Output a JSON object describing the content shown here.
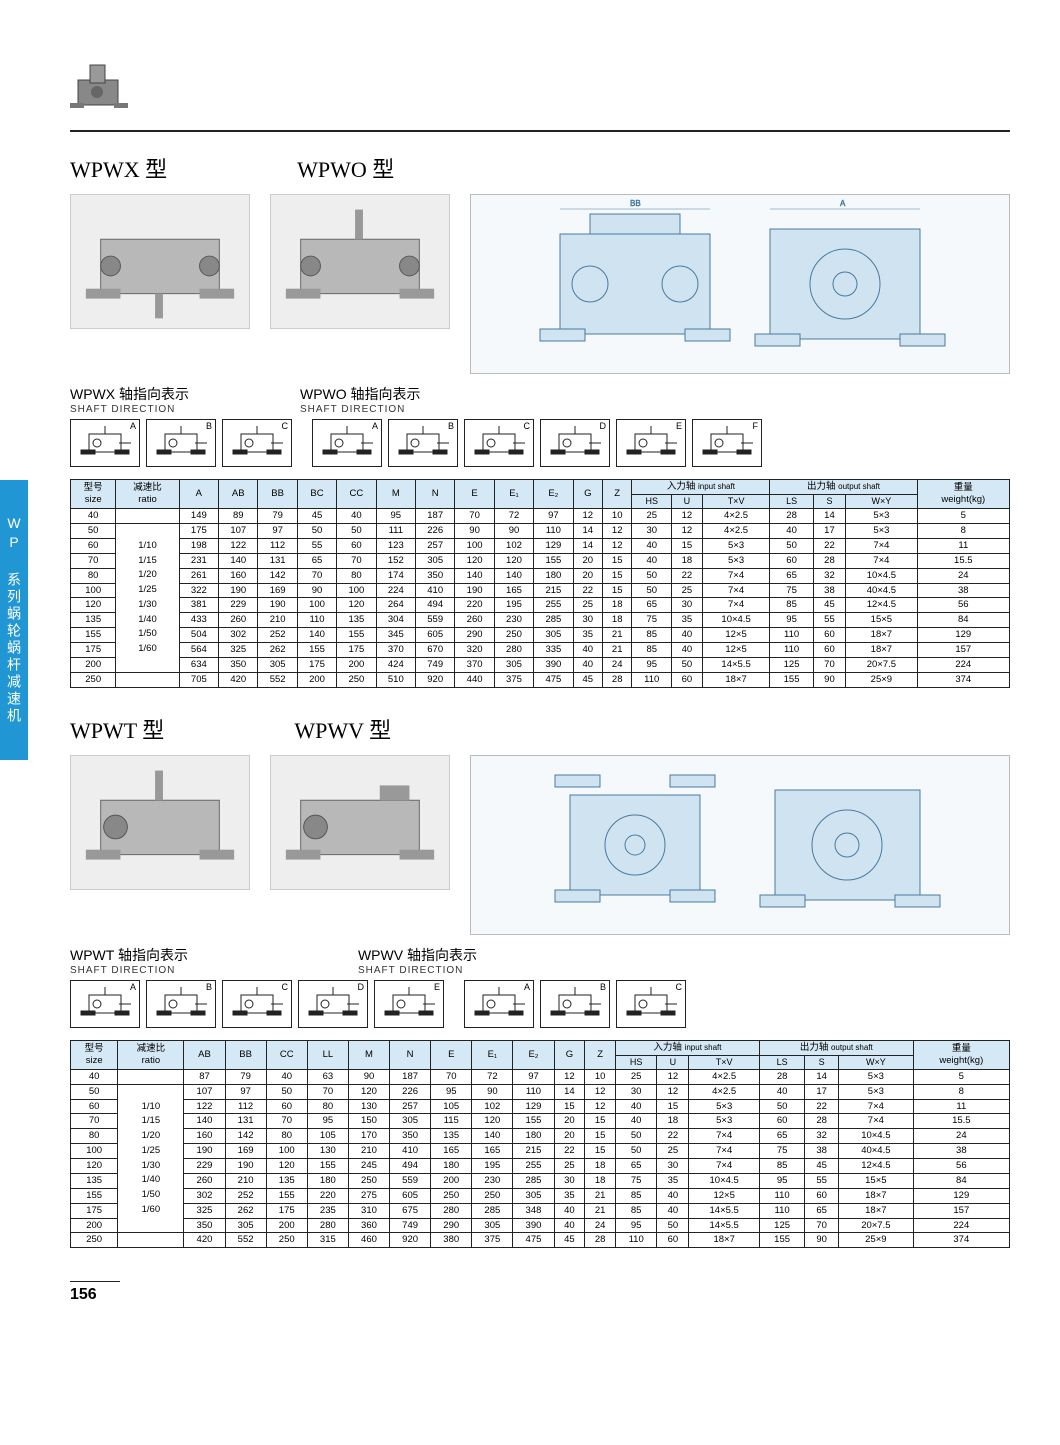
{
  "page_number": "156",
  "side_tab_text": "WP 系列蜗轮蜗杆减速机",
  "section1": {
    "title_left": "WPWX 型",
    "title_right": "WPWO 型",
    "sub_left_cn": "WPWX 轴指向表示",
    "sub_right_cn": "WPWO 轴指向表示",
    "sub_en": "SHAFT DIRECTION",
    "shaft_letters_left": [
      "A",
      "B",
      "C"
    ],
    "shaft_letters_right": [
      "A",
      "B",
      "C",
      "D",
      "E",
      "F"
    ]
  },
  "section2": {
    "title_left": "WPWT 型",
    "title_right": "WPWV 型",
    "sub_left_cn": "WPWT 轴指向表示",
    "sub_right_cn": "WPWV 轴指向表示",
    "sub_en": "SHAFT DIRECTION",
    "shaft_letters_left": [
      "A",
      "B",
      "C",
      "D",
      "E"
    ],
    "shaft_letters_right": [
      "A",
      "B",
      "C"
    ]
  },
  "table1": {
    "header": {
      "size_cn": "型号",
      "size_en": "size",
      "ratio_cn": "减速比",
      "ratio_en": "ratio",
      "cols": [
        "A",
        "AB",
        "BB",
        "BC",
        "CC",
        "M",
        "N",
        "E",
        "E₁",
        "E₂",
        "G",
        "Z"
      ],
      "input_cn": "入力轴",
      "input_en": "input shaft",
      "output_cn": "出力轴",
      "output_en": "output shaft",
      "input_cols": [
        "HS",
        "U",
        "T×V"
      ],
      "output_cols": [
        "LS",
        "S",
        "W×Y"
      ],
      "weight_cn": "重量",
      "weight_en": "weight(kg)"
    },
    "ratios": [
      "1/10",
      "1/15",
      "1/20",
      "1/25",
      "1/30",
      "1/40",
      "1/50",
      "1/60"
    ],
    "rows": [
      [
        "40",
        "149",
        "89",
        "79",
        "45",
        "40",
        "95",
        "187",
        "70",
        "72",
        "97",
        "12",
        "10",
        "25",
        "12",
        "4×2.5",
        "28",
        "14",
        "5×3",
        "5"
      ],
      [
        "50",
        "175",
        "107",
        "97",
        "50",
        "50",
        "111",
        "226",
        "90",
        "90",
        "110",
        "14",
        "12",
        "30",
        "12",
        "4×2.5",
        "40",
        "17",
        "5×3",
        "8"
      ],
      [
        "60",
        "198",
        "122",
        "112",
        "55",
        "60",
        "123",
        "257",
        "100",
        "102",
        "129",
        "14",
        "12",
        "40",
        "15",
        "5×3",
        "50",
        "22",
        "7×4",
        "11"
      ],
      [
        "70",
        "231",
        "140",
        "131",
        "65",
        "70",
        "152",
        "305",
        "120",
        "120",
        "155",
        "20",
        "15",
        "40",
        "18",
        "5×3",
        "60",
        "28",
        "7×4",
        "15.5"
      ],
      [
        "80",
        "261",
        "160",
        "142",
        "70",
        "80",
        "174",
        "350",
        "140",
        "140",
        "180",
        "20",
        "15",
        "50",
        "22",
        "7×4",
        "65",
        "32",
        "10×4.5",
        "24"
      ],
      [
        "100",
        "322",
        "190",
        "169",
        "90",
        "100",
        "224",
        "410",
        "190",
        "165",
        "215",
        "22",
        "15",
        "50",
        "25",
        "7×4",
        "75",
        "38",
        "40×4.5",
        "38"
      ],
      [
        "120",
        "381",
        "229",
        "190",
        "100",
        "120",
        "264",
        "494",
        "220",
        "195",
        "255",
        "25",
        "18",
        "65",
        "30",
        "7×4",
        "85",
        "45",
        "12×4.5",
        "56"
      ],
      [
        "135",
        "433",
        "260",
        "210",
        "110",
        "135",
        "304",
        "559",
        "260",
        "230",
        "285",
        "30",
        "18",
        "75",
        "35",
        "10×4.5",
        "95",
        "55",
        "15×5",
        "84"
      ],
      [
        "155",
        "504",
        "302",
        "252",
        "140",
        "155",
        "345",
        "605",
        "290",
        "250",
        "305",
        "35",
        "21",
        "85",
        "40",
        "12×5",
        "110",
        "60",
        "18×7",
        "129"
      ],
      [
        "175",
        "564",
        "325",
        "262",
        "155",
        "175",
        "370",
        "670",
        "320",
        "280",
        "335",
        "40",
        "21",
        "85",
        "40",
        "12×5",
        "110",
        "60",
        "18×7",
        "157"
      ],
      [
        "200",
        "634",
        "350",
        "305",
        "175",
        "200",
        "424",
        "749",
        "370",
        "305",
        "390",
        "40",
        "24",
        "95",
        "50",
        "14×5.5",
        "125",
        "70",
        "20×7.5",
        "224"
      ],
      [
        "250",
        "705",
        "420",
        "552",
        "200",
        "250",
        "510",
        "920",
        "440",
        "375",
        "475",
        "45",
        "28",
        "110",
        "60",
        "18×7",
        "155",
        "90",
        "25×9",
        "374"
      ]
    ]
  },
  "table2": {
    "header": {
      "size_cn": "型号",
      "size_en": "size",
      "ratio_cn": "减速比",
      "ratio_en": "ratio",
      "cols": [
        "AB",
        "BB",
        "CC",
        "LL",
        "M",
        "N",
        "E",
        "E₁",
        "E₂",
        "G",
        "Z"
      ],
      "input_cn": "入力轴",
      "input_en": "input shaft",
      "output_cn": "出力轴",
      "output_en": "output shaft",
      "input_cols": [
        "HS",
        "U",
        "T×V"
      ],
      "output_cols": [
        "LS",
        "S",
        "W×Y"
      ],
      "weight_cn": "重量",
      "weight_en": "weight(kg)"
    },
    "ratios": [
      "1/10",
      "1/15",
      "1/20",
      "1/25",
      "1/30",
      "1/40",
      "1/50",
      "1/60"
    ],
    "rows": [
      [
        "40",
        "87",
        "79",
        "40",
        "63",
        "90",
        "187",
        "70",
        "72",
        "97",
        "12",
        "10",
        "25",
        "12",
        "4×2.5",
        "28",
        "14",
        "5×3",
        "5"
      ],
      [
        "50",
        "107",
        "97",
        "50",
        "70",
        "120",
        "226",
        "95",
        "90",
        "110",
        "14",
        "12",
        "30",
        "12",
        "4×2.5",
        "40",
        "17",
        "5×3",
        "8"
      ],
      [
        "60",
        "122",
        "112",
        "60",
        "80",
        "130",
        "257",
        "105",
        "102",
        "129",
        "15",
        "12",
        "40",
        "15",
        "5×3",
        "50",
        "22",
        "7×4",
        "11"
      ],
      [
        "70",
        "140",
        "131",
        "70",
        "95",
        "150",
        "305",
        "115",
        "120",
        "155",
        "20",
        "15",
        "40",
        "18",
        "5×3",
        "60",
        "28",
        "7×4",
        "15.5"
      ],
      [
        "80",
        "160",
        "142",
        "80",
        "105",
        "170",
        "350",
        "135",
        "140",
        "180",
        "20",
        "15",
        "50",
        "22",
        "7×4",
        "65",
        "32",
        "10×4.5",
        "24"
      ],
      [
        "100",
        "190",
        "169",
        "100",
        "130",
        "210",
        "410",
        "165",
        "165",
        "215",
        "22",
        "15",
        "50",
        "25",
        "7×4",
        "75",
        "38",
        "40×4.5",
        "38"
      ],
      [
        "120",
        "229",
        "190",
        "120",
        "155",
        "245",
        "494",
        "180",
        "195",
        "255",
        "25",
        "18",
        "65",
        "30",
        "7×4",
        "85",
        "45",
        "12×4.5",
        "56"
      ],
      [
        "135",
        "260",
        "210",
        "135",
        "180",
        "250",
        "559",
        "200",
        "230",
        "285",
        "30",
        "18",
        "75",
        "35",
        "10×4.5",
        "95",
        "55",
        "15×5",
        "84"
      ],
      [
        "155",
        "302",
        "252",
        "155",
        "220",
        "275",
        "605",
        "250",
        "250",
        "305",
        "35",
        "21",
        "85",
        "40",
        "12×5",
        "110",
        "60",
        "18×7",
        "129"
      ],
      [
        "175",
        "325",
        "262",
        "175",
        "235",
        "310",
        "675",
        "280",
        "285",
        "348",
        "40",
        "21",
        "85",
        "40",
        "14×5.5",
        "110",
        "65",
        "18×7",
        "157"
      ],
      [
        "200",
        "350",
        "305",
        "200",
        "280",
        "360",
        "749",
        "290",
        "305",
        "390",
        "40",
        "24",
        "95",
        "50",
        "14×5.5",
        "125",
        "70",
        "20×7.5",
        "224"
      ],
      [
        "250",
        "420",
        "552",
        "250",
        "315",
        "460",
        "920",
        "380",
        "375",
        "475",
        "45",
        "28",
        "110",
        "60",
        "18×7",
        "155",
        "90",
        "25×9",
        "374"
      ]
    ]
  },
  "colors": {
    "header_bg": "#d5e8f5",
    "side_tab": "#2196d4",
    "border": "#222222"
  }
}
